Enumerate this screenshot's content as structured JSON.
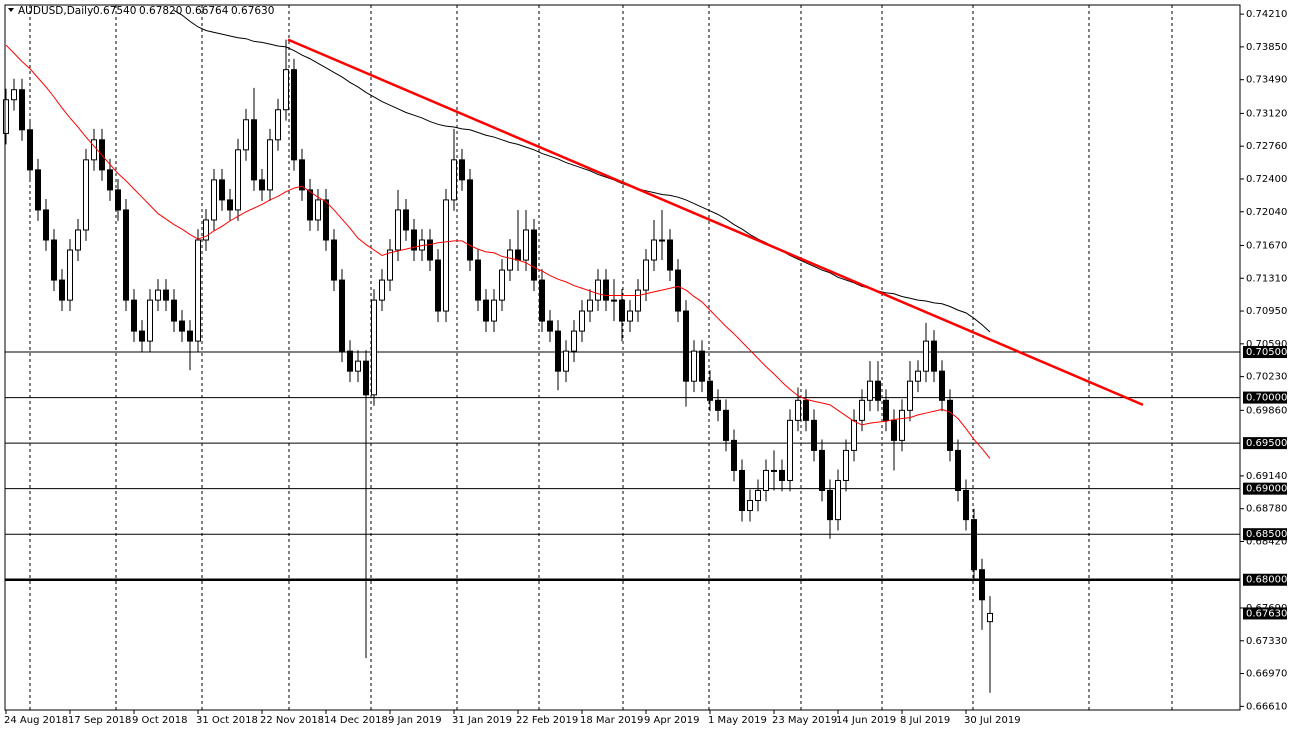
{
  "chart_data": {
    "type": "candlestick",
    "title": "AUDUSD,Daily",
    "header_values": [
      {
        "value": 0.6754,
        "label": "0.67540"
      },
      {
        "value": 0.6782,
        "label": "0.67820"
      },
      {
        "value": 0.66764,
        "label": "0.66764"
      },
      {
        "value": 0.6763,
        "label": "0.67630"
      }
    ],
    "categories": [
      "24 Aug 2018",
      null,
      null,
      null,
      null,
      null,
      null,
      null,
      "17 Sep 2018",
      null,
      null,
      null,
      null,
      null,
      null,
      null,
      "9 Oct 2018",
      null,
      null,
      null,
      null,
      null,
      null,
      null,
      "31 Oct 2018",
      null,
      null,
      null,
      null,
      null,
      null,
      null,
      "22 Nov 2018",
      null,
      null,
      null,
      null,
      null,
      null,
      null,
      "14 Dec 2018",
      null,
      null,
      null,
      null,
      null,
      null,
      null,
      "9 Jan 2019",
      null,
      null,
      null,
      null,
      null,
      null,
      null,
      "31 Jan 2019",
      null,
      null,
      null,
      null,
      null,
      null,
      null,
      "22 Feb 2019",
      null,
      null,
      null,
      null,
      null,
      null,
      null,
      "18 Mar 2019",
      null,
      null,
      null,
      null,
      null,
      null,
      null,
      "9 Apr 2019",
      null,
      null,
      null,
      null,
      null,
      null,
      null,
      "1 May 2019",
      null,
      null,
      null,
      null,
      null,
      null,
      null,
      "23 May 2019",
      null,
      null,
      null,
      null,
      null,
      null,
      null,
      "14 Jun 2019",
      null,
      null,
      null,
      null,
      null,
      null,
      null,
      "8 Jul 2019",
      null,
      null,
      null,
      null,
      null,
      null,
      null,
      "30 Jul 2019",
      null,
      null,
      null
    ],
    "ohlc": [
      [
        0.729,
        0.7339,
        0.7278,
        0.7327
      ],
      [
        0.7327,
        0.735,
        0.7315,
        0.7338
      ],
      [
        0.7338,
        0.735,
        0.7282,
        0.7294
      ],
      [
        0.7294,
        0.7306,
        0.7238,
        0.725
      ],
      [
        0.725,
        0.7262,
        0.7194,
        0.7206
      ],
      [
        0.7206,
        0.7218,
        0.7161,
        0.7173
      ],
      [
        0.7173,
        0.7185,
        0.7117,
        0.7129
      ],
      [
        0.7129,
        0.7141,
        0.7095,
        0.7107
      ],
      [
        0.7107,
        0.7174,
        0.7095,
        0.7162
      ],
      [
        0.7162,
        0.7196,
        0.715,
        0.7184
      ],
      [
        0.7184,
        0.7273,
        0.7172,
        0.7261
      ],
      [
        0.7261,
        0.7295,
        0.7249,
        0.7283
      ],
      [
        0.7283,
        0.7295,
        0.7238,
        0.725
      ],
      [
        0.725,
        0.7262,
        0.7216,
        0.7228
      ],
      [
        0.7228,
        0.724,
        0.7194,
        0.7206
      ],
      [
        0.7206,
        0.7218,
        0.7095,
        0.7107
      ],
      [
        0.7107,
        0.7119,
        0.7061,
        0.7073
      ],
      [
        0.7073,
        0.7085,
        0.705,
        0.7062
      ],
      [
        0.7062,
        0.7119,
        0.705,
        0.7107
      ],
      [
        0.7107,
        0.713,
        0.7095,
        0.7118
      ],
      [
        0.7118,
        0.713,
        0.7095,
        0.7107
      ],
      [
        0.7107,
        0.7119,
        0.7072,
        0.7084
      ],
      [
        0.7084,
        0.7096,
        0.7061,
        0.7073
      ],
      [
        0.7073,
        0.7085,
        0.703,
        0.7062
      ],
      [
        0.7062,
        0.7185,
        0.705,
        0.7173
      ],
      [
        0.7173,
        0.7207,
        0.7161,
        0.7195
      ],
      [
        0.7195,
        0.7251,
        0.7183,
        0.7239
      ],
      [
        0.7239,
        0.7251,
        0.7205,
        0.7217
      ],
      [
        0.7217,
        0.7229,
        0.7194,
        0.7206
      ],
      [
        0.7206,
        0.7284,
        0.7194,
        0.7272
      ],
      [
        0.7272,
        0.7317,
        0.726,
        0.7305
      ],
      [
        0.7305,
        0.734,
        0.7227,
        0.7239
      ],
      [
        0.7239,
        0.7251,
        0.7216,
        0.7228
      ],
      [
        0.7228,
        0.7295,
        0.7216,
        0.7283
      ],
      [
        0.7283,
        0.7328,
        0.7271,
        0.7316
      ],
      [
        0.7316,
        0.7393,
        0.7304,
        0.736
      ],
      [
        0.736,
        0.7372,
        0.7249,
        0.7261
      ],
      [
        0.7261,
        0.7273,
        0.7216,
        0.7228
      ],
      [
        0.7228,
        0.724,
        0.7183,
        0.7195
      ],
      [
        0.7195,
        0.7229,
        0.7183,
        0.7217
      ],
      [
        0.7217,
        0.7229,
        0.7161,
        0.7173
      ],
      [
        0.7173,
        0.7185,
        0.7117,
        0.7129
      ],
      [
        0.7129,
        0.7141,
        0.7039,
        0.7051
      ],
      [
        0.7051,
        0.7063,
        0.7017,
        0.7029
      ],
      [
        0.7029,
        0.7052,
        0.7017,
        0.704
      ],
      [
        0.704,
        0.7052,
        0.6714,
        0.7003
      ],
      [
        0.7003,
        0.7119,
        0.6991,
        0.7107
      ],
      [
        0.7107,
        0.7141,
        0.7095,
        0.7129
      ],
      [
        0.7129,
        0.7174,
        0.7117,
        0.7162
      ],
      [
        0.7162,
        0.7228,
        0.715,
        0.7206
      ],
      [
        0.7206,
        0.7218,
        0.7172,
        0.7184
      ],
      [
        0.7184,
        0.7196,
        0.715,
        0.7162
      ],
      [
        0.7162,
        0.7185,
        0.715,
        0.7173
      ],
      [
        0.7173,
        0.7185,
        0.7139,
        0.7151
      ],
      [
        0.7151,
        0.7163,
        0.7083,
        0.7095
      ],
      [
        0.7095,
        0.7229,
        0.7083,
        0.7217
      ],
      [
        0.7217,
        0.7295,
        0.7205,
        0.7261
      ],
      [
        0.7261,
        0.7273,
        0.7227,
        0.7239
      ],
      [
        0.7239,
        0.7251,
        0.7139,
        0.7151
      ],
      [
        0.7151,
        0.7163,
        0.7095,
        0.7107
      ],
      [
        0.7107,
        0.7119,
        0.7072,
        0.7084
      ],
      [
        0.7084,
        0.7119,
        0.7072,
        0.7107
      ],
      [
        0.7107,
        0.7152,
        0.7095,
        0.714
      ],
      [
        0.714,
        0.7174,
        0.7128,
        0.7162
      ],
      [
        0.7162,
        0.7206,
        0.7139,
        0.7151
      ],
      [
        0.7151,
        0.7206,
        0.7139,
        0.7184
      ],
      [
        0.7184,
        0.7196,
        0.7117,
        0.7129
      ],
      [
        0.7129,
        0.7141,
        0.7072,
        0.7084
      ],
      [
        0.7084,
        0.7096,
        0.7061,
        0.7073
      ],
      [
        0.7073,
        0.7085,
        0.7008,
        0.7029
      ],
      [
        0.7029,
        0.7063,
        0.7017,
        0.7051
      ],
      [
        0.7051,
        0.7085,
        0.7039,
        0.7073
      ],
      [
        0.7073,
        0.7107,
        0.7061,
        0.7095
      ],
      [
        0.7095,
        0.7119,
        0.7083,
        0.7107
      ],
      [
        0.7107,
        0.7141,
        0.7095,
        0.7129
      ],
      [
        0.7129,
        0.7141,
        0.7095,
        0.7107
      ],
      [
        0.7107,
        0.713,
        0.7084,
        0.7107
      ],
      [
        0.7107,
        0.7119,
        0.7062,
        0.7084
      ],
      [
        0.7084,
        0.7107,
        0.7072,
        0.7095
      ],
      [
        0.7095,
        0.713,
        0.7083,
        0.7118
      ],
      [
        0.7118,
        0.7163,
        0.7106,
        0.7151
      ],
      [
        0.7151,
        0.7195,
        0.7139,
        0.7173
      ],
      [
        0.7173,
        0.7206,
        0.7151,
        0.7173
      ],
      [
        0.7173,
        0.7185,
        0.7128,
        0.714
      ],
      [
        0.714,
        0.7152,
        0.7083,
        0.7095
      ],
      [
        0.7095,
        0.7107,
        0.699,
        0.7018
      ],
      [
        0.7018,
        0.7063,
        0.7006,
        0.7051
      ],
      [
        0.7051,
        0.7063,
        0.7006,
        0.7018
      ],
      [
        0.7018,
        0.703,
        0.6985,
        0.6997
      ],
      [
        0.6997,
        0.7009,
        0.6974,
        0.6986
      ],
      [
        0.6986,
        0.6998,
        0.6941,
        0.6953
      ],
      [
        0.6953,
        0.6965,
        0.6908,
        0.692
      ],
      [
        0.692,
        0.6932,
        0.6864,
        0.6876
      ],
      [
        0.6876,
        0.6899,
        0.6864,
        0.6887
      ],
      [
        0.6887,
        0.691,
        0.6875,
        0.6898
      ],
      [
        0.6898,
        0.6932,
        0.6886,
        0.692
      ],
      [
        0.692,
        0.6942,
        0.6898,
        0.692
      ],
      [
        0.692,
        0.6932,
        0.6897,
        0.6909
      ],
      [
        0.6909,
        0.6987,
        0.6897,
        0.6975
      ],
      [
        0.6975,
        0.7011,
        0.6963,
        0.6997
      ],
      [
        0.6997,
        0.7009,
        0.6963,
        0.6975
      ],
      [
        0.6975,
        0.6987,
        0.693,
        0.6942
      ],
      [
        0.6942,
        0.6954,
        0.6886,
        0.6898
      ],
      [
        0.6898,
        0.691,
        0.6845,
        0.6866
      ],
      [
        0.6866,
        0.6921,
        0.6854,
        0.6909
      ],
      [
        0.6909,
        0.6954,
        0.6897,
        0.6942
      ],
      [
        0.6942,
        0.6987,
        0.693,
        0.6975
      ],
      [
        0.6975,
        0.7009,
        0.6963,
        0.6997
      ],
      [
        0.6997,
        0.704,
        0.6985,
        0.7018
      ],
      [
        0.7018,
        0.704,
        0.6985,
        0.6997
      ],
      [
        0.6997,
        0.7009,
        0.6963,
        0.6975
      ],
      [
        0.6975,
        0.6987,
        0.692,
        0.6953
      ],
      [
        0.6953,
        0.6998,
        0.6941,
        0.6986
      ],
      [
        0.6986,
        0.704,
        0.6974,
        0.7018
      ],
      [
        0.7018,
        0.7041,
        0.7006,
        0.7029
      ],
      [
        0.7029,
        0.7082,
        0.7017,
        0.7062
      ],
      [
        0.7062,
        0.7074,
        0.7017,
        0.7029
      ],
      [
        0.7029,
        0.7041,
        0.6985,
        0.6997
      ],
      [
        0.6997,
        0.7009,
        0.693,
        0.6942
      ],
      [
        0.6942,
        0.6954,
        0.6886,
        0.6898
      ],
      [
        0.6898,
        0.691,
        0.6854,
        0.6866
      ],
      [
        0.6866,
        0.6878,
        0.6799,
        0.6811
      ],
      [
        0.6811,
        0.6823,
        0.6745,
        0.6778
      ],
      [
        0.6754,
        0.6782,
        0.6676,
        0.6763
      ]
    ],
    "up_color": "#ffffff",
    "down_color": "#000000",
    "outline": "#000000",
    "ylim": [
      0.6657,
      0.7431
    ],
    "yticks": [
      {
        "value": 0.7421,
        "label": "0.74210"
      },
      {
        "value": 0.7385,
        "label": "0.73850"
      },
      {
        "value": 0.7349,
        "label": "0.73490"
      },
      {
        "value": 0.7312,
        "label": "0.73120"
      },
      {
        "value": 0.7276,
        "label": "0.72760"
      },
      {
        "value": 0.724,
        "label": "0.72400"
      },
      {
        "value": 0.7204,
        "label": "0.72040"
      },
      {
        "value": 0.7167,
        "label": "0.71670"
      },
      {
        "value": 0.7131,
        "label": "0.71310"
      },
      {
        "value": 0.7095,
        "label": "0.70950"
      },
      {
        "value": 0.7059,
        "label": "0.70590"
      },
      {
        "value": 0.7023,
        "label": "0.70230"
      },
      {
        "value": 0.6986,
        "label": "0.69860"
      },
      {
        "value": 0.6914,
        "label": "0.69140"
      },
      {
        "value": 0.6878,
        "label": "0.68780"
      },
      {
        "value": 0.6842,
        "label": "0.68420"
      },
      {
        "value": 0.6769,
        "label": "0.67690"
      },
      {
        "value": 0.6733,
        "label": "0.67330"
      },
      {
        "value": 0.6697,
        "label": "0.66970"
      },
      {
        "value": 0.6661,
        "label": "0.66610"
      }
    ],
    "grid": true,
    "moving_averages": [
      {
        "color": "#ff0000",
        "values": [
          0.7387,
          0.7378,
          0.7369,
          0.7361,
          0.7351,
          0.7341,
          0.733,
          0.7318,
          0.7307,
          0.7297,
          0.7286,
          0.7276,
          0.7266,
          0.7256,
          0.7246,
          0.7238,
          0.7229,
          0.722,
          0.7211,
          0.7202,
          0.7196,
          0.719,
          0.7185,
          0.7179,
          0.7174,
          0.7177,
          0.7183,
          0.7188,
          0.7194,
          0.7199,
          0.7204,
          0.7208,
          0.7212,
          0.7217,
          0.7221,
          0.7226,
          0.723,
          0.7232,
          0.7226,
          0.722,
          0.7215,
          0.7206,
          0.7196,
          0.7186,
          0.7175,
          0.7168,
          0.7162,
          0.7156,
          0.7159,
          0.7161,
          0.7163,
          0.7165,
          0.7167,
          0.7168,
          0.717,
          0.7171,
          0.7172,
          0.7172,
          0.7167,
          0.7163,
          0.716,
          0.7159,
          0.7155,
          0.7153,
          0.7151,
          0.7148,
          0.7143,
          0.7139,
          0.7134,
          0.713,
          0.7127,
          0.7123,
          0.712,
          0.7117,
          0.7114,
          0.7112,
          0.7112,
          0.7112,
          0.7112,
          0.7112,
          0.7114,
          0.7116,
          0.7118,
          0.712,
          0.7122,
          0.7118,
          0.7111,
          0.7105,
          0.7096,
          0.7087,
          0.7078,
          0.707,
          0.7061,
          0.7052,
          0.7043,
          0.7034,
          0.7026,
          0.7017,
          0.7009,
          0.7002,
          0.6998,
          0.6996,
          0.6994,
          0.6992,
          0.6986,
          0.698,
          0.6974,
          0.697,
          0.6972,
          0.6973,
          0.6974,
          0.6976,
          0.6977,
          0.6978,
          0.6981,
          0.6983,
          0.6985,
          0.6987,
          0.6984,
          0.6977,
          0.6966,
          0.6954,
          0.6944,
          0.6933
        ]
      },
      {
        "color": "#000000",
        "values": [
          null,
          null,
          null,
          null,
          null,
          null,
          null,
          null,
          null,
          null,
          null,
          null,
          null,
          null,
          null,
          null,
          null,
          null,
          null,
          null,
          null,
          0.7425,
          0.742,
          0.7413,
          0.7407,
          0.7403,
          0.7401,
          0.7399,
          0.7397,
          0.7395,
          0.7394,
          0.7391,
          0.739,
          0.7388,
          0.7386,
          0.7385,
          0.7381,
          0.7376,
          0.7372,
          0.7367,
          0.7362,
          0.7357,
          0.7352,
          0.7346,
          0.7341,
          0.7335,
          0.733,
          0.7325,
          0.7321,
          0.7317,
          0.7313,
          0.731,
          0.7307,
          0.7303,
          0.73,
          0.7298,
          0.7297,
          0.7295,
          0.7294,
          0.7291,
          0.7288,
          0.7286,
          0.7283,
          0.728,
          0.7278,
          0.7275,
          0.7272,
          0.7268,
          0.7265,
          0.7262,
          0.7258,
          0.7255,
          0.7252,
          0.7249,
          0.7245,
          0.7242,
          0.7239,
          0.7235,
          0.7232,
          0.7229,
          0.7227,
          0.7225,
          0.7223,
          0.7222,
          0.722,
          0.7217,
          0.7213,
          0.7209,
          0.7205,
          0.7201,
          0.7196,
          0.719,
          0.7185,
          0.7179,
          0.7174,
          0.717,
          0.7165,
          0.7161,
          0.7156,
          0.7152,
          0.7148,
          0.7144,
          0.714,
          0.7137,
          0.7132,
          0.7129,
          0.7126,
          0.7122,
          0.712,
          0.7117,
          0.7115,
          0.7114,
          0.7111,
          0.7109,
          0.7107,
          0.7106,
          0.7104,
          0.7103,
          0.71,
          0.7096,
          0.7093,
          0.7087,
          0.708,
          0.7072
        ]
      }
    ],
    "levels": [
      {
        "value": 0.705,
        "label": "0.70500",
        "bold": false
      },
      {
        "value": 0.7,
        "label": "0.70000",
        "bold": false
      },
      {
        "value": 0.695,
        "label": "0.69500",
        "bold": false
      },
      {
        "value": 0.69,
        "label": "0.69000",
        "bold": false
      },
      {
        "value": 0.685,
        "label": "0.68500",
        "bold": false
      },
      {
        "value": 0.68,
        "label": "0.68000",
        "bold": true
      }
    ],
    "trendline": {
      "color": "#ff0000",
      "values": [
        0.7393,
        0.6992
      ]
    },
    "last_price": {
      "value": 0.6763,
      "label": "0.67630"
    }
  }
}
